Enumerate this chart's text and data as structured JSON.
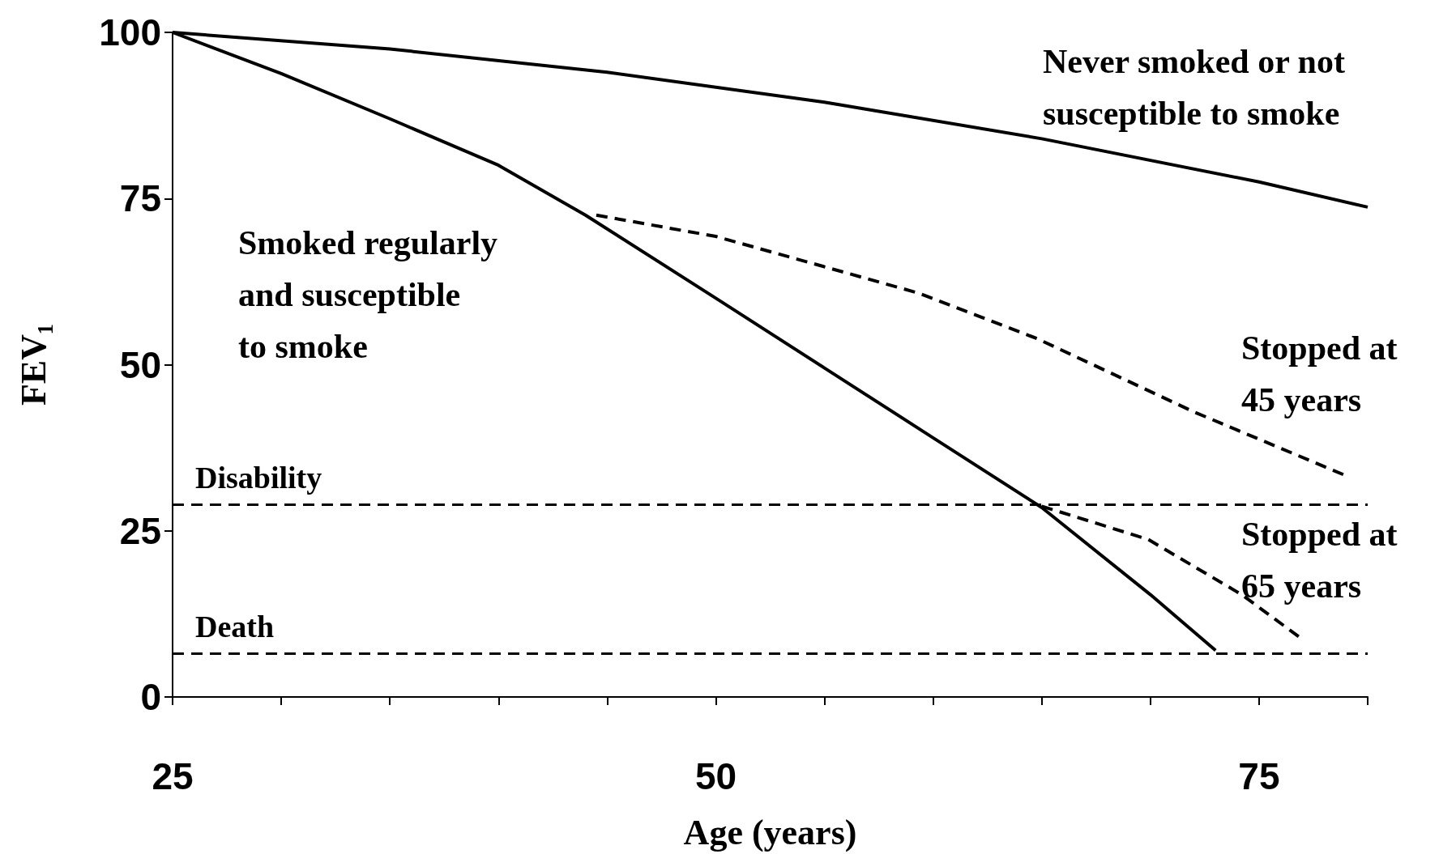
{
  "chart_data": {
    "type": "line",
    "xlabel": "Age (years)",
    "ylabel": "FEV₁",
    "xlim": [
      25,
      80
    ],
    "ylim": [
      0,
      100
    ],
    "xticks": [
      25,
      {
        "value": 30,
        "label": null
      },
      {
        "value": 35,
        "label": null
      },
      {
        "value": 40,
        "label": null
      },
      {
        "value": 45,
        "label": null
      },
      50,
      {
        "value": 55,
        "label": null
      },
      {
        "value": 60,
        "label": null
      },
      {
        "value": 65,
        "label": null
      },
      {
        "value": 70,
        "label": null
      },
      75,
      {
        "value": 80,
        "label": null
      }
    ],
    "yticks": [
      0,
      25,
      50,
      75,
      100
    ],
    "series": [
      {
        "color": "#000000",
        "line_style": "solid",
        "x": [
          25,
          35,
          45,
          55,
          65,
          75,
          80
        ],
        "values": [
          100,
          97.5,
          94,
          89.5,
          84,
          77.5,
          73.7
        ]
      },
      {
        "color": "#000000",
        "line_style": "solid",
        "x": [
          25,
          30,
          35,
          40,
          44,
          50,
          55,
          60,
          65,
          70,
          73
        ],
        "values": [
          100,
          93.8,
          87,
          80,
          72.5,
          60,
          49.5,
          39,
          28.5,
          15.4,
          7
        ]
      },
      {
        "color": "#000000",
        "line_style": "dashed",
        "x": [
          44.5,
          50,
          59.3,
          64.8,
          72,
          79
        ],
        "values": [
          72.5,
          69.3,
          60.8,
          53.9,
          42.9,
          33.3
        ]
      },
      {
        "color": "#000000",
        "line_style": "dashed",
        "x": [
          65,
          69.9,
          74.2,
          76.9
        ],
        "values": [
          28.7,
          23.7,
          15.4,
          8.9
        ]
      }
    ],
    "ref_lines": [
      {
        "axis": "y",
        "value": 29,
        "label": "Disability",
        "line_style": "dashed",
        "color": "#000000"
      },
      {
        "axis": "y",
        "value": 6.6,
        "label": "Death",
        "line_style": "dashed",
        "color": "#000000"
      }
    ],
    "annotations": [
      "Never smoked or not\nsusceptible to smoke",
      "Smoked regularly\nand susceptible\nto smoke",
      "Stopped at\n45 years",
      "Stopped at\n65 years"
    ]
  }
}
